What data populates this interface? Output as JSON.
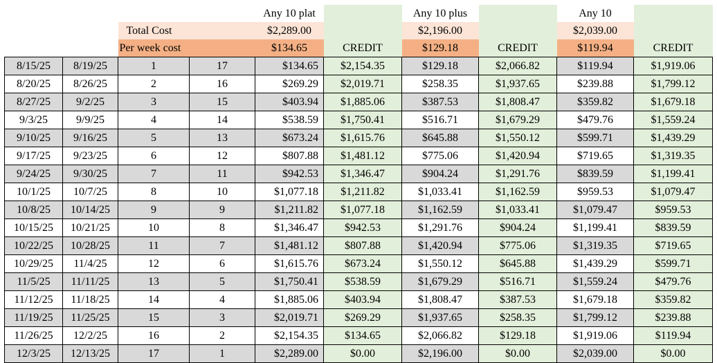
{
  "header": {
    "plans": [
      "Any 10 plat",
      "Any 10 plus",
      "Any 10"
    ],
    "total_cost_label": "Total Cost",
    "total_costs": [
      "$2,289.00",
      "$2,196.00",
      "$2,039.00"
    ],
    "per_week_label": "Per week cost",
    "per_week_costs": [
      "$134.65",
      "$129.18",
      "$119.94"
    ],
    "credit_label": "CREDIT"
  },
  "rows": [
    [
      "8/15/25",
      "8/19/25",
      "1",
      "17",
      "$134.65",
      "$2,154.35",
      "$129.18",
      "$2,066.82",
      "$119.94",
      "$1,919.06"
    ],
    [
      "8/20/25",
      "8/26/25",
      "2",
      "16",
      "$269.29",
      "$2,019.71",
      "$258.35",
      "$1,937.65",
      "$239.88",
      "$1,799.12"
    ],
    [
      "8/27/25",
      "9/2/25",
      "3",
      "15",
      "$403.94",
      "$1,885.06",
      "$387.53",
      "$1,808.47",
      "$359.82",
      "$1,679.18"
    ],
    [
      "9/3/25",
      "9/9/25",
      "4",
      "14",
      "$538.59",
      "$1,750.41",
      "$516.71",
      "$1,679.29",
      "$479.76",
      "$1,559.24"
    ],
    [
      "9/10/25",
      "9/16/25",
      "5",
      "13",
      "$673.24",
      "$1,615.76",
      "$645.88",
      "$1,550.12",
      "$599.71",
      "$1,439.29"
    ],
    [
      "9/17/25",
      "9/23/25",
      "6",
      "12",
      "$807.88",
      "$1,481.12",
      "$775.06",
      "$1,420.94",
      "$719.65",
      "$1,319.35"
    ],
    [
      "9/24/25",
      "9/30/25",
      "7",
      "11",
      "$942.53",
      "$1,346.47",
      "$904.24",
      "$1,291.76",
      "$839.59",
      "$1,199.41"
    ],
    [
      "10/1/25",
      "10/7/25",
      "8",
      "10",
      "$1,077.18",
      "$1,211.82",
      "$1,033.41",
      "$1,162.59",
      "$959.53",
      "$1,079.47"
    ],
    [
      "10/8/25",
      "10/14/25",
      "9",
      "9",
      "$1,211.82",
      "$1,077.18",
      "$1,162.59",
      "$1,033.41",
      "$1,079.47",
      "$959.53"
    ],
    [
      "10/15/25",
      "10/21/25",
      "10",
      "8",
      "$1,346.47",
      "$942.53",
      "$1,291.76",
      "$904.24",
      "$1,199.41",
      "$839.59"
    ],
    [
      "10/22/25",
      "10/28/25",
      "11",
      "7",
      "$1,481.12",
      "$807.88",
      "$1,420.94",
      "$775.06",
      "$1,319.35",
      "$719.65"
    ],
    [
      "10/29/25",
      "11/4/25",
      "12",
      "6",
      "$1,615.76",
      "$673.24",
      "$1,550.12",
      "$645.88",
      "$1,439.29",
      "$599.71"
    ],
    [
      "11/5/25",
      "11/11/25",
      "13",
      "5",
      "$1,750.41",
      "$538.59",
      "$1,679.29",
      "$516.71",
      "$1,559.24",
      "$479.76"
    ],
    [
      "11/12/25",
      "11/18/25",
      "14",
      "4",
      "$1,885.06",
      "$403.94",
      "$1,808.47",
      "$387.53",
      "$1,679.18",
      "$359.82"
    ],
    [
      "11/19/25",
      "11/25/25",
      "15",
      "3",
      "$2,019.71",
      "$269.29",
      "$1,937.65",
      "$258.35",
      "$1,799.12",
      "$239.88"
    ],
    [
      "11/26/25",
      "12/2/25",
      "16",
      "2",
      "$2,154.35",
      "$134.65",
      "$2,066.82",
      "$129.18",
      "$1,919.06",
      "$119.94"
    ],
    [
      "12/3/25",
      "12/13/25",
      "17",
      "1",
      "$2,289.00",
      "$0.00",
      "$2,196.00",
      "$0.00",
      "$2,039.00",
      "$0.00"
    ]
  ],
  "colors": {
    "gray_row": "#d9d9d9",
    "credit_green": "#e2efda",
    "total_peach": "#fce4d6",
    "week_orange": "#f4b084"
  }
}
